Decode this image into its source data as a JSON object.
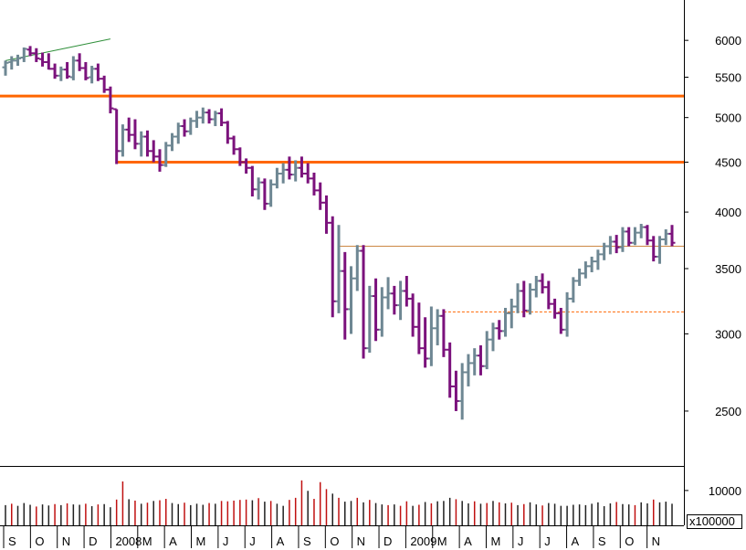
{
  "chart_data": {
    "type": "bar",
    "subtype": "ohlc-with-volume",
    "title": "",
    "xlabel": "",
    "ylabel": "",
    "y_scale": "log",
    "price_ylim": [
      2220,
      6600
    ],
    "price_ticks": [
      {
        "value": 6000,
        "label": "6000"
      },
      {
        "value": 5500,
        "label": "5500"
      },
      {
        "value": 5000,
        "label": "5000"
      },
      {
        "value": 4500,
        "label": "4500"
      },
      {
        "value": 4000,
        "label": "4000"
      },
      {
        "value": 3500,
        "label": "3500"
      },
      {
        "value": 3000,
        "label": "3000"
      },
      {
        "value": 2500,
        "label": "2500"
      }
    ],
    "volume_ylim": [
      0,
      16000
    ],
    "volume_ticks": [
      {
        "value": 10000,
        "label": "10000"
      }
    ],
    "volume_unit_label": "x100000",
    "x_tick_labels": [
      "S",
      "O",
      "N",
      "D",
      "2008",
      "M",
      "A",
      "M",
      "J",
      "J",
      "A",
      "S",
      "O",
      "N",
      "D",
      "2009",
      "M",
      "A",
      "M",
      "J",
      "J",
      "A",
      "S",
      "O",
      "N"
    ],
    "grid": false,
    "colors": {
      "up_bar": "#6e8793",
      "down_bar": "#7b127c",
      "horizontal_line": "#ff6600",
      "thin_line": "#cc8844",
      "trend_line": "#2f8f3a",
      "volume_up": "#c01010",
      "volume_down": "#202020"
    },
    "ohlc": [
      {
        "o": 5630,
        "h": 5720,
        "l": 5520,
        "c": 5690
      },
      {
        "o": 5700,
        "h": 5780,
        "l": 5600,
        "c": 5720
      },
      {
        "o": 5720,
        "h": 5800,
        "l": 5650,
        "c": 5750
      },
      {
        "o": 5760,
        "h": 5900,
        "l": 5700,
        "c": 5880
      },
      {
        "o": 5870,
        "h": 5920,
        "l": 5780,
        "c": 5820
      },
      {
        "o": 5820,
        "h": 5890,
        "l": 5700,
        "c": 5750
      },
      {
        "o": 5740,
        "h": 5830,
        "l": 5640,
        "c": 5700
      },
      {
        "o": 5700,
        "h": 5820,
        "l": 5600,
        "c": 5610
      },
      {
        "o": 5610,
        "h": 5680,
        "l": 5480,
        "c": 5520
      },
      {
        "o": 5520,
        "h": 5640,
        "l": 5450,
        "c": 5600
      },
      {
        "o": 5600,
        "h": 5700,
        "l": 5480,
        "c": 5510
      },
      {
        "o": 5500,
        "h": 5780,
        "l": 5460,
        "c": 5720
      },
      {
        "o": 5720,
        "h": 5820,
        "l": 5580,
        "c": 5620
      },
      {
        "o": 5620,
        "h": 5700,
        "l": 5460,
        "c": 5490
      },
      {
        "o": 5500,
        "h": 5650,
        "l": 5420,
        "c": 5610
      },
      {
        "o": 5610,
        "h": 5680,
        "l": 5450,
        "c": 5480
      },
      {
        "o": 5480,
        "h": 5520,
        "l": 5300,
        "c": 5340
      },
      {
        "o": 5340,
        "h": 5380,
        "l": 5050,
        "c": 5110
      },
      {
        "o": 5100,
        "h": 5100,
        "l": 4480,
        "c": 4620
      },
      {
        "o": 4620,
        "h": 4920,
        "l": 4560,
        "c": 4860
      },
      {
        "o": 4860,
        "h": 5000,
        "l": 4720,
        "c": 4800
      },
      {
        "o": 4800,
        "h": 4980,
        "l": 4640,
        "c": 4700
      },
      {
        "o": 4700,
        "h": 4840,
        "l": 4560,
        "c": 4780
      },
      {
        "o": 4780,
        "h": 4850,
        "l": 4560,
        "c": 4620
      },
      {
        "o": 4620,
        "h": 4740,
        "l": 4500,
        "c": 4560
      },
      {
        "o": 4560,
        "h": 4640,
        "l": 4400,
        "c": 4470
      },
      {
        "o": 4470,
        "h": 4720,
        "l": 4450,
        "c": 4680
      },
      {
        "o": 4680,
        "h": 4820,
        "l": 4620,
        "c": 4780
      },
      {
        "o": 4780,
        "h": 4940,
        "l": 4700,
        "c": 4900
      },
      {
        "o": 4900,
        "h": 4980,
        "l": 4780,
        "c": 4840
      },
      {
        "o": 4840,
        "h": 5000,
        "l": 4800,
        "c": 4960
      },
      {
        "o": 4960,
        "h": 5080,
        "l": 4880,
        "c": 5000
      },
      {
        "o": 5000,
        "h": 5120,
        "l": 4930,
        "c": 5060
      },
      {
        "o": 5060,
        "h": 5100,
        "l": 4930,
        "c": 4980
      },
      {
        "o": 4980,
        "h": 5080,
        "l": 4900,
        "c": 5050
      },
      {
        "o": 5050,
        "h": 5110,
        "l": 4900,
        "c": 4940
      },
      {
        "o": 4940,
        "h": 4960,
        "l": 4700,
        "c": 4760
      },
      {
        "o": 4760,
        "h": 4790,
        "l": 4580,
        "c": 4640
      },
      {
        "o": 4640,
        "h": 4660,
        "l": 4460,
        "c": 4500
      },
      {
        "o": 4500,
        "h": 4540,
        "l": 4380,
        "c": 4440
      },
      {
        "o": 4440,
        "h": 4460,
        "l": 4150,
        "c": 4220
      },
      {
        "o": 4220,
        "h": 4340,
        "l": 4120,
        "c": 4290
      },
      {
        "o": 4290,
        "h": 4330,
        "l": 4020,
        "c": 4080
      },
      {
        "o": 4080,
        "h": 4320,
        "l": 4050,
        "c": 4270
      },
      {
        "o": 4270,
        "h": 4440,
        "l": 4230,
        "c": 4380
      },
      {
        "o": 4380,
        "h": 4490,
        "l": 4280,
        "c": 4420
      },
      {
        "o": 4420,
        "h": 4560,
        "l": 4320,
        "c": 4370
      },
      {
        "o": 4370,
        "h": 4520,
        "l": 4300,
        "c": 4440
      },
      {
        "o": 4440,
        "h": 4560,
        "l": 4340,
        "c": 4380
      },
      {
        "o": 4380,
        "h": 4490,
        "l": 4280,
        "c": 4330
      },
      {
        "o": 4330,
        "h": 4390,
        "l": 4160,
        "c": 4210
      },
      {
        "o": 4210,
        "h": 4290,
        "l": 4020,
        "c": 4090
      },
      {
        "o": 4090,
        "h": 4160,
        "l": 3800,
        "c": 3900
      },
      {
        "o": 3900,
        "h": 3960,
        "l": 3120,
        "c": 3240
      },
      {
        "o": 3240,
        "h": 3880,
        "l": 3150,
        "c": 3480
      },
      {
        "o": 3480,
        "h": 3640,
        "l": 2960,
        "c": 3180
      },
      {
        "o": 3180,
        "h": 3520,
        "l": 3000,
        "c": 3420
      },
      {
        "o": 3420,
        "h": 3700,
        "l": 3320,
        "c": 3650
      },
      {
        "o": 3650,
        "h": 3700,
        "l": 2830,
        "c": 2900
      },
      {
        "o": 2900,
        "h": 3360,
        "l": 2870,
        "c": 3280
      },
      {
        "o": 3280,
        "h": 3420,
        "l": 2950,
        "c": 3030
      },
      {
        "o": 3030,
        "h": 3350,
        "l": 2980,
        "c": 3270
      },
      {
        "o": 3270,
        "h": 3430,
        "l": 3180,
        "c": 3300
      },
      {
        "o": 3300,
        "h": 3360,
        "l": 3140,
        "c": 3210
      },
      {
        "o": 3210,
        "h": 3400,
        "l": 3100,
        "c": 3320
      },
      {
        "o": 3320,
        "h": 3440,
        "l": 3200,
        "c": 3260
      },
      {
        "o": 3260,
        "h": 3300,
        "l": 2980,
        "c": 3050
      },
      {
        "o": 3050,
        "h": 3230,
        "l": 2860,
        "c": 2900
      },
      {
        "o": 2900,
        "h": 3120,
        "l": 2770,
        "c": 2830
      },
      {
        "o": 2830,
        "h": 3200,
        "l": 2780,
        "c": 3040
      },
      {
        "o": 3040,
        "h": 3180,
        "l": 2920,
        "c": 3130
      },
      {
        "o": 3130,
        "h": 3180,
        "l": 2840,
        "c": 2890
      },
      {
        "o": 2890,
        "h": 2940,
        "l": 2580,
        "c": 2650
      },
      {
        "o": 2650,
        "h": 2750,
        "l": 2500,
        "c": 2560
      },
      {
        "o": 2560,
        "h": 2800,
        "l": 2450,
        "c": 2740
      },
      {
        "o": 2740,
        "h": 2860,
        "l": 2650,
        "c": 2800
      },
      {
        "o": 2800,
        "h": 2900,
        "l": 2720,
        "c": 2850
      },
      {
        "o": 2850,
        "h": 2920,
        "l": 2720,
        "c": 2780
      },
      {
        "o": 2780,
        "h": 3020,
        "l": 2760,
        "c": 2960
      },
      {
        "o": 2960,
        "h": 3080,
        "l": 2880,
        "c": 3040
      },
      {
        "o": 3040,
        "h": 3100,
        "l": 2960,
        "c": 3020
      },
      {
        "o": 3020,
        "h": 3190,
        "l": 2980,
        "c": 3150
      },
      {
        "o": 3150,
        "h": 3260,
        "l": 3040,
        "c": 3200
      },
      {
        "o": 3200,
        "h": 3380,
        "l": 3150,
        "c": 3320
      },
      {
        "o": 3320,
        "h": 3400,
        "l": 3120,
        "c": 3170
      },
      {
        "o": 3170,
        "h": 3380,
        "l": 3140,
        "c": 3330
      },
      {
        "o": 3330,
        "h": 3440,
        "l": 3270,
        "c": 3400
      },
      {
        "o": 3400,
        "h": 3460,
        "l": 3300,
        "c": 3350
      },
      {
        "o": 3350,
        "h": 3400,
        "l": 3180,
        "c": 3220
      },
      {
        "o": 3220,
        "h": 3260,
        "l": 3110,
        "c": 3150
      },
      {
        "o": 3150,
        "h": 3190,
        "l": 3000,
        "c": 3030
      },
      {
        "o": 3030,
        "h": 3310,
        "l": 2980,
        "c": 3260
      },
      {
        "o": 3260,
        "h": 3430,
        "l": 3230,
        "c": 3400
      },
      {
        "o": 3400,
        "h": 3500,
        "l": 3360,
        "c": 3460
      },
      {
        "o": 3460,
        "h": 3560,
        "l": 3420,
        "c": 3520
      },
      {
        "o": 3520,
        "h": 3600,
        "l": 3470,
        "c": 3560
      },
      {
        "o": 3560,
        "h": 3660,
        "l": 3490,
        "c": 3620
      },
      {
        "o": 3620,
        "h": 3720,
        "l": 3570,
        "c": 3690
      },
      {
        "o": 3690,
        "h": 3780,
        "l": 3620,
        "c": 3730
      },
      {
        "o": 3730,
        "h": 3790,
        "l": 3630,
        "c": 3680
      },
      {
        "o": 3680,
        "h": 3860,
        "l": 3640,
        "c": 3820
      },
      {
        "o": 3820,
        "h": 3860,
        "l": 3690,
        "c": 3720
      },
      {
        "o": 3720,
        "h": 3860,
        "l": 3700,
        "c": 3810
      },
      {
        "o": 3810,
        "h": 3890,
        "l": 3760,
        "c": 3860
      },
      {
        "o": 3860,
        "h": 3880,
        "l": 3700,
        "c": 3740
      },
      {
        "o": 3740,
        "h": 3780,
        "l": 3560,
        "c": 3600
      },
      {
        "o": 3600,
        "h": 3780,
        "l": 3540,
        "c": 3750
      },
      {
        "o": 3750,
        "h": 3840,
        "l": 3700,
        "c": 3800
      },
      {
        "o": 3800,
        "h": 3880,
        "l": 3690,
        "c": 3720
      }
    ],
    "volume": [
      {
        "v": 5800,
        "up": false
      },
      {
        "v": 6200,
        "up": true
      },
      {
        "v": 5600,
        "up": false
      },
      {
        "v": 6400,
        "up": false
      },
      {
        "v": 5900,
        "up": false
      },
      {
        "v": 5400,
        "up": true
      },
      {
        "v": 6000,
        "up": false
      },
      {
        "v": 5700,
        "up": false
      },
      {
        "v": 6100,
        "up": true
      },
      {
        "v": 5800,
        "up": false
      },
      {
        "v": 6300,
        "up": true
      },
      {
        "v": 6000,
        "up": false
      },
      {
        "v": 5900,
        "up": false
      },
      {
        "v": 6200,
        "up": true
      },
      {
        "v": 5500,
        "up": false
      },
      {
        "v": 6000,
        "up": true
      },
      {
        "v": 6100,
        "up": false
      },
      {
        "v": 5200,
        "up": false
      },
      {
        "v": 7400,
        "up": true
      },
      {
        "v": 12600,
        "up": true
      },
      {
        "v": 7500,
        "up": false
      },
      {
        "v": 7100,
        "up": true
      },
      {
        "v": 6200,
        "up": false
      },
      {
        "v": 6500,
        "up": true
      },
      {
        "v": 7000,
        "up": false
      },
      {
        "v": 7200,
        "up": true
      },
      {
        "v": 7600,
        "up": true
      },
      {
        "v": 6400,
        "up": false
      },
      {
        "v": 6100,
        "up": false
      },
      {
        "v": 6500,
        "up": true
      },
      {
        "v": 5800,
        "up": false
      },
      {
        "v": 6200,
        "up": false
      },
      {
        "v": 5900,
        "up": false
      },
      {
        "v": 6400,
        "up": true
      },
      {
        "v": 6200,
        "up": false
      },
      {
        "v": 7000,
        "up": true
      },
      {
        "v": 6900,
        "up": true
      },
      {
        "v": 7100,
        "up": true
      },
      {
        "v": 7300,
        "up": true
      },
      {
        "v": 7400,
        "up": true
      },
      {
        "v": 7200,
        "up": false
      },
      {
        "v": 7800,
        "up": true
      },
      {
        "v": 6800,
        "up": false
      },
      {
        "v": 7000,
        "up": true
      },
      {
        "v": 6200,
        "up": false
      },
      {
        "v": 5600,
        "up": false
      },
      {
        "v": 7300,
        "up": true
      },
      {
        "v": 7900,
        "up": true
      },
      {
        "v": 12900,
        "up": true
      },
      {
        "v": 9900,
        "up": false
      },
      {
        "v": 7600,
        "up": true
      },
      {
        "v": 12400,
        "up": true
      },
      {
        "v": 10400,
        "up": true
      },
      {
        "v": 9100,
        "up": false
      },
      {
        "v": 7900,
        "up": true
      },
      {
        "v": 6800,
        "up": false
      },
      {
        "v": 7000,
        "up": false
      },
      {
        "v": 7900,
        "up": true
      },
      {
        "v": 6600,
        "up": false
      },
      {
        "v": 7300,
        "up": true
      },
      {
        "v": 6400,
        "up": false
      },
      {
        "v": 6000,
        "up": false
      },
      {
        "v": 5800,
        "up": true
      },
      {
        "v": 6000,
        "up": false
      },
      {
        "v": 5600,
        "up": true
      },
      {
        "v": 6900,
        "up": true
      },
      {
        "v": 5600,
        "up": false
      },
      {
        "v": 5900,
        "up": true
      },
      {
        "v": 6700,
        "up": false
      },
      {
        "v": 6300,
        "up": true
      },
      {
        "v": 6900,
        "up": false
      },
      {
        "v": 7000,
        "up": false
      },
      {
        "v": 7900,
        "up": false
      },
      {
        "v": 7500,
        "up": true
      },
      {
        "v": 7000,
        "up": false
      },
      {
        "v": 6300,
        "up": false
      },
      {
        "v": 6900,
        "up": true
      },
      {
        "v": 6200,
        "up": false
      },
      {
        "v": 6400,
        "up": true
      },
      {
        "v": 7000,
        "up": false
      },
      {
        "v": 6600,
        "up": true
      },
      {
        "v": 6300,
        "up": false
      },
      {
        "v": 6500,
        "up": true
      },
      {
        "v": 5800,
        "up": false
      },
      {
        "v": 6100,
        "up": true
      },
      {
        "v": 6600,
        "up": false
      },
      {
        "v": 6000,
        "up": false
      },
      {
        "v": 5700,
        "up": true
      },
      {
        "v": 6400,
        "up": false
      },
      {
        "v": 6200,
        "up": false
      },
      {
        "v": 5600,
        "up": false
      },
      {
        "v": 5600,
        "up": false
      },
      {
        "v": 5900,
        "up": false
      },
      {
        "v": 6000,
        "up": false
      },
      {
        "v": 5800,
        "up": false
      },
      {
        "v": 6200,
        "up": false
      },
      {
        "v": 6600,
        "up": false
      },
      {
        "v": 5500,
        "up": false
      },
      {
        "v": 6300,
        "up": false
      },
      {
        "v": 6700,
        "up": true
      },
      {
        "v": 6100,
        "up": false
      },
      {
        "v": 6000,
        "up": false
      },
      {
        "v": 5800,
        "up": true
      },
      {
        "v": 6600,
        "up": false
      },
      {
        "v": 6300,
        "up": false
      },
      {
        "v": 7400,
        "up": true
      },
      {
        "v": 6600,
        "up": false
      },
      {
        "v": 6800,
        "up": false
      },
      {
        "v": 6200,
        "up": false
      }
    ],
    "horizontal_levels": [
      {
        "kind": "thick",
        "value": 5260,
        "from_index": 0
      },
      {
        "kind": "thick",
        "value": 4500,
        "from_index": 18
      },
      {
        "kind": "thin",
        "value": 3690,
        "from_index": 54
      },
      {
        "kind": "dashed",
        "value": 3160,
        "from_index": 71
      }
    ],
    "trend_line": {
      "from": {
        "index": 0,
        "value": 5720
      },
      "to": {
        "index": 17,
        "value": 6020
      }
    }
  }
}
